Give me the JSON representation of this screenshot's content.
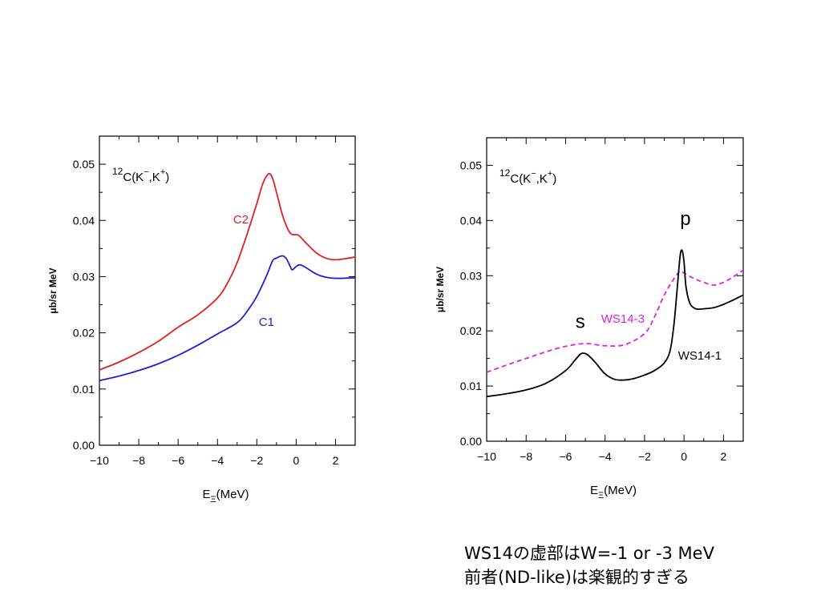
{
  "caption": {
    "line1": "WS14の虚部はW=-1 or -3 MeV",
    "line2": "前者(ND-like)は楽観的すぎる"
  },
  "chart_data": [
    {
      "type": "line",
      "reaction": {
        "pre": "12",
        "main": "C(K",
        "sup1": "−",
        "mid": ",K",
        "sup2": "+",
        "post": ")"
      },
      "xlabel": {
        "main": "E",
        "sub": "Ξ",
        "unit": "(MeV)"
      },
      "ylabel": "μb/sr MeV",
      "xlim": [
        -10,
        3
      ],
      "ylim": [
        0,
        0.055
      ],
      "xticks": [
        -10,
        -8,
        -6,
        -4,
        -2,
        0,
        2
      ],
      "xticklabels": [
        "−10",
        "−8",
        "−6",
        "−4",
        "−2",
        "0",
        "2"
      ],
      "yticks": [
        0,
        0.01,
        0.02,
        0.03,
        0.04,
        0.05
      ],
      "yticklabels": [
        "0.00",
        "0.01",
        "0.02",
        "0.03",
        "0.04",
        "0.05"
      ],
      "grid": false,
      "series": [
        {
          "name": "C2",
          "color": "#e02020",
          "dash": "solid",
          "label_at": [
            -3.2,
            0.0395
          ],
          "points": [
            [
              -10,
              0.0134
            ],
            [
              -9,
              0.0148
            ],
            [
              -8,
              0.0165
            ],
            [
              -7,
              0.0185
            ],
            [
              -6,
              0.021
            ],
            [
              -5,
              0.0232
            ],
            [
              -4,
              0.0262
            ],
            [
              -3.5,
              0.0288
            ],
            [
              -3,
              0.0325
            ],
            [
              -2.5,
              0.0375
            ],
            [
              -2,
              0.043
            ],
            [
              -1.7,
              0.0465
            ],
            [
              -1.4,
              0.0483
            ],
            [
              -1.2,
              0.0475
            ],
            [
              -1,
              0.045
            ],
            [
              -0.7,
              0.041
            ],
            [
              -0.4,
              0.0383
            ],
            [
              -0.2,
              0.0375
            ],
            [
              0.1,
              0.0374
            ],
            [
              0.5,
              0.036
            ],
            [
              1,
              0.0343
            ],
            [
              1.5,
              0.0333
            ],
            [
              2,
              0.033
            ],
            [
              2.5,
              0.0332
            ],
            [
              3,
              0.0335
            ]
          ]
        },
        {
          "name": "C1",
          "color": "#2020d0",
          "dash": "solid",
          "label_at": [
            -1.9,
            0.0212
          ],
          "points": [
            [
              -10,
              0.0115
            ],
            [
              -9,
              0.0123
            ],
            [
              -8,
              0.0133
            ],
            [
              -7,
              0.0145
            ],
            [
              -6,
              0.016
            ],
            [
              -5,
              0.0178
            ],
            [
              -4,
              0.0198
            ],
            [
              -3,
              0.0218
            ],
            [
              -2.5,
              0.0238
            ],
            [
              -2,
              0.0265
            ],
            [
              -1.5,
              0.0302
            ],
            [
              -1.2,
              0.0328
            ],
            [
              -1,
              0.0333
            ],
            [
              -0.7,
              0.0337
            ],
            [
              -0.5,
              0.0332
            ],
            [
              -0.3,
              0.0318
            ],
            [
              -0.2,
              0.0312
            ],
            [
              0,
              0.0318
            ],
            [
              0.2,
              0.0321
            ],
            [
              0.5,
              0.0316
            ],
            [
              1,
              0.0305
            ],
            [
              1.5,
              0.0299
            ],
            [
              2,
              0.0297
            ],
            [
              3,
              0.0298
            ]
          ]
        }
      ]
    },
    {
      "type": "line",
      "reaction": {
        "pre": "12",
        "main": "C(K",
        "sup1": "−",
        "mid": ",K",
        "sup2": "+",
        "post": ")"
      },
      "xlabel": {
        "main": "E",
        "sub": "Ξ",
        "unit": "(MeV)"
      },
      "ylabel": "μb/sr MeV",
      "xlim": [
        -10,
        3
      ],
      "ylim": [
        0,
        0.055
      ],
      "xticks": [
        -10,
        -8,
        -6,
        -4,
        -2,
        0,
        2
      ],
      "xticklabels": [
        "−10",
        "−8",
        "−6",
        "−4",
        "−2",
        "0",
        "2"
      ],
      "yticks": [
        0,
        0.01,
        0.02,
        0.03,
        0.04,
        0.05
      ],
      "yticklabels": [
        "0.00",
        "0.01",
        "0.02",
        "0.03",
        "0.04",
        "0.05"
      ],
      "grid": false,
      "annotations": [
        {
          "text": "s",
          "at": [
            -5.5,
            0.0205
          ]
        },
        {
          "text": "p",
          "at": [
            -0.2,
            0.0392
          ]
        }
      ],
      "series": [
        {
          "name": "WS14-3",
          "color": "#e020e0",
          "dash": "dashed",
          "label_at": [
            -4.2,
            0.0215
          ],
          "points": [
            [
              -10,
              0.0125
            ],
            [
              -9,
              0.0138
            ],
            [
              -8,
              0.015
            ],
            [
              -7,
              0.0162
            ],
            [
              -6,
              0.0172
            ],
            [
              -5,
              0.0177
            ],
            [
              -4,
              0.0173
            ],
            [
              -3,
              0.0175
            ],
            [
              -2,
              0.0195
            ],
            [
              -1.5,
              0.0225
            ],
            [
              -1,
              0.0265
            ],
            [
              -0.5,
              0.0295
            ],
            [
              -0.2,
              0.0308
            ],
            [
              0,
              0.0305
            ],
            [
              0.5,
              0.0295
            ],
            [
              1,
              0.0288
            ],
            [
              1.5,
              0.0283
            ],
            [
              2,
              0.0288
            ],
            [
              2.5,
              0.0298
            ],
            [
              3,
              0.031
            ]
          ]
        },
        {
          "name": "WS14-1",
          "color": "#000000",
          "dash": "solid",
          "label_at": [
            -0.3,
            0.0148
          ],
          "points": [
            [
              -10,
              0.0081
            ],
            [
              -9,
              0.0086
            ],
            [
              -8,
              0.0093
            ],
            [
              -7,
              0.0105
            ],
            [
              -6,
              0.0128
            ],
            [
              -5.5,
              0.0148
            ],
            [
              -5.2,
              0.0159
            ],
            [
              -4.9,
              0.0157
            ],
            [
              -4.5,
              0.0143
            ],
            [
              -4,
              0.0122
            ],
            [
              -3.5,
              0.0112
            ],
            [
              -3,
              0.0111
            ],
            [
              -2.5,
              0.0114
            ],
            [
              -2,
              0.012
            ],
            [
              -1.5,
              0.0128
            ],
            [
              -1,
              0.0142
            ],
            [
              -0.7,
              0.0165
            ],
            [
              -0.5,
              0.0215
            ],
            [
              -0.35,
              0.0275
            ],
            [
              -0.2,
              0.0335
            ],
            [
              -0.1,
              0.0346
            ],
            [
              0,
              0.0325
            ],
            [
              0.1,
              0.028
            ],
            [
              0.3,
              0.025
            ],
            [
              0.6,
              0.024
            ],
            [
              1,
              0.024
            ],
            [
              1.5,
              0.0242
            ],
            [
              2,
              0.0248
            ],
            [
              2.5,
              0.0256
            ],
            [
              3,
              0.0265
            ]
          ]
        }
      ]
    }
  ]
}
